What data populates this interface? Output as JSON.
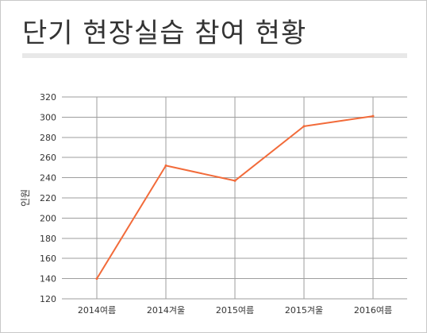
{
  "page": {
    "title": "단기 현장실습 참여 현황"
  },
  "colors": {
    "line": "#f26b3a",
    "grid": "#9e9e9e",
    "text": "#333333"
  },
  "chart_data": {
    "type": "line",
    "title": "단기 현장실습 참여 현황",
    "xlabel": "",
    "ylabel": "인원",
    "categories": [
      "2014여름",
      "2014겨울",
      "2015여름",
      "2015겨울",
      "2016여름"
    ],
    "series": [
      {
        "values": [
          140,
          252,
          237,
          291,
          301
        ]
      }
    ],
    "ylim": [
      120,
      320
    ],
    "yticks": [
      120,
      140,
      160,
      180,
      200,
      220,
      240,
      260,
      280,
      300,
      320
    ],
    "grid": true,
    "legend": "none"
  }
}
